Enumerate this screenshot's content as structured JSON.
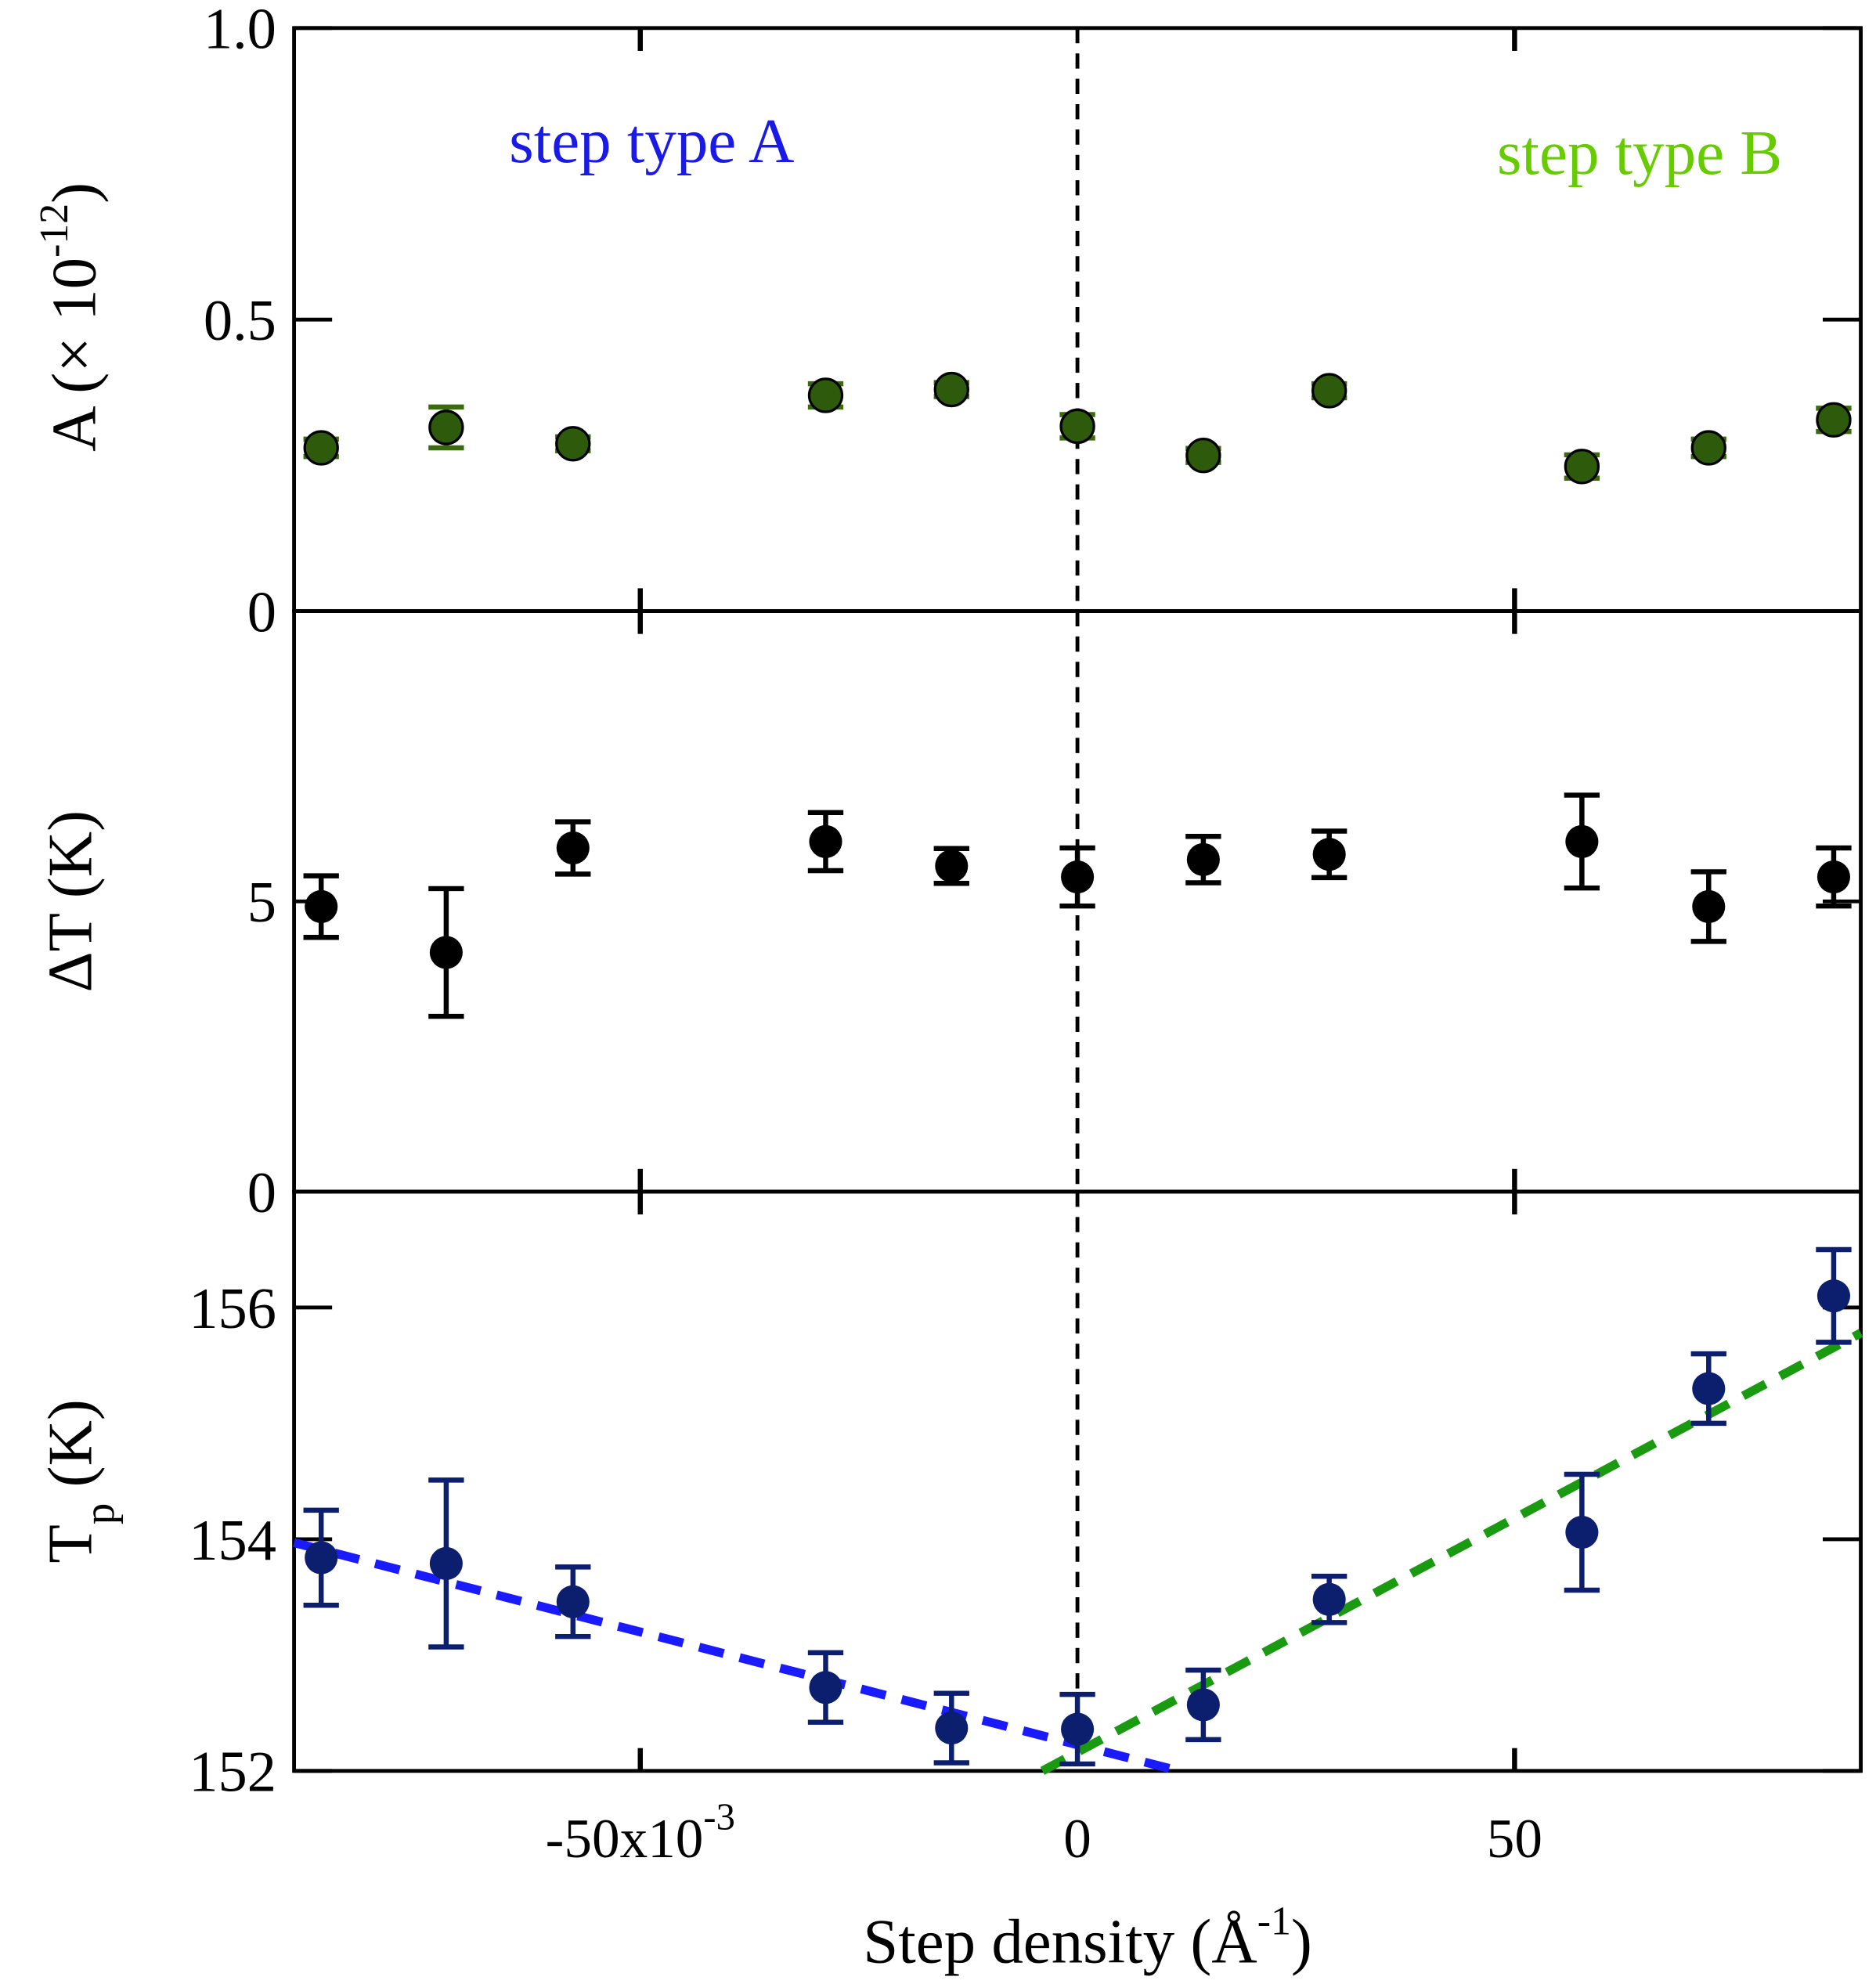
{
  "colors": {
    "green_fill": "#2e5a0c",
    "green_err": "#3c6a10",
    "black": "#000000",
    "navy": "#0c1f6e",
    "fit_a": "#1a1aff",
    "fit_b": "#1a9a10",
    "label_a": "#1a1ae6",
    "label_b": "#66cc00"
  },
  "chart_data": {
    "type": "scatter",
    "x": [
      -86.5,
      -72.2,
      -57.7,
      -28.8,
      -14.4,
      0,
      14.4,
      28.8,
      57.7,
      72.2,
      86.5
    ],
    "xlim": [
      -89.6,
      89.6
    ],
    "xticks": [
      -50,
      0,
      50
    ],
    "xtick_labels": [
      {
        "text": "-50x10",
        "sup": "-3"
      },
      {
        "text": "0",
        "sup": ""
      },
      {
        "text": "50",
        "sup": ""
      }
    ],
    "xlabel": {
      "pre": "Step density (Å",
      "sup": "-1",
      "post": ")"
    },
    "vline_x": 0,
    "panels": [
      {
        "name": "A",
        "ylabel": {
          "pre": "A (× 10",
          "sup": "-12",
          "post": ")"
        },
        "ylim": [
          0,
          1.0
        ],
        "yticks": [
          0,
          0.5,
          1.0
        ],
        "ytick_labels": [
          "0",
          "0.5",
          "1.0"
        ],
        "y": [
          0.28,
          0.315,
          0.287,
          0.37,
          0.38,
          0.317,
          0.267,
          0.378,
          0.248,
          0.28,
          0.328
        ],
        "yerr": [
          0.015,
          0.035,
          0.012,
          0.02,
          0.012,
          0.02,
          0.012,
          0.012,
          0.02,
          0.015,
          0.02
        ],
        "color": "green",
        "annotations": [
          {
            "text": "step type A",
            "x": -65,
            "y": 0.77,
            "color": "label_a"
          },
          {
            "text": "step type B",
            "x": 48,
            "y": 0.75,
            "color": "label_b"
          }
        ]
      },
      {
        "name": "deltaT",
        "ylabel": {
          "pre": "ΔT (K)",
          "sup": "",
          "post": ""
        },
        "ylim": [
          0,
          10
        ],
        "yticks": [
          0,
          5
        ],
        "ytick_labels": [
          "0",
          "5"
        ],
        "y": [
          4.91,
          4.12,
          5.92,
          6.03,
          5.61,
          5.42,
          5.72,
          5.81,
          6.03,
          4.91,
          5.42
        ],
        "yerr": [
          0.53,
          1.1,
          0.45,
          0.5,
          0.3,
          0.5,
          0.4,
          0.4,
          0.8,
          0.6,
          0.5
        ],
        "color": "black"
      },
      {
        "name": "Tp",
        "ylabel": {
          "pre": "T",
          "sub": "p",
          "post": " (K)"
        },
        "ylim": [
          152,
          157
        ],
        "yticks": [
          152,
          154,
          156
        ],
        "ytick_labels": [
          "152",
          "154",
          "156"
        ],
        "y": [
          153.84,
          153.79,
          153.46,
          152.72,
          152.37,
          152.36,
          152.57,
          153.48,
          154.06,
          155.3,
          156.1
        ],
        "yerr": [
          0.41,
          0.72,
          0.3,
          0.3,
          0.3,
          0.3,
          0.3,
          0.2,
          0.5,
          0.3,
          0.4
        ],
        "color": "navy",
        "fits": [
          {
            "name": "step type A fit",
            "x": [
              -89.6,
              11.6
            ],
            "y": [
              153.97,
              152.0
            ],
            "color": "fit_a"
          },
          {
            "name": "step type B fit",
            "x": [
              -4,
              89.6
            ],
            "y": [
              152.0,
              155.78
            ],
            "color": "fit_b"
          }
        ]
      }
    ]
  }
}
